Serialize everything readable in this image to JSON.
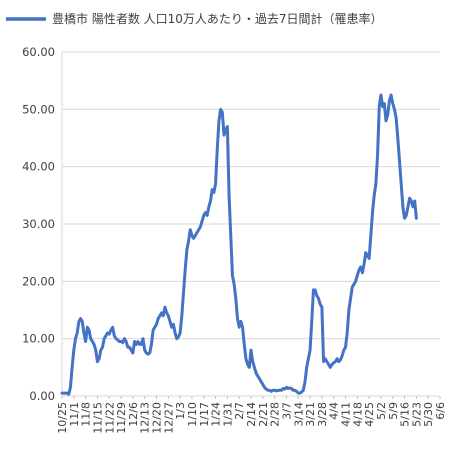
{
  "chart_data": {
    "type": "line",
    "legend": {
      "position": "top-left",
      "label": "豊橋市 陽性者数 人口10万人あたり・過去7日間計（罹患率）"
    },
    "ylim": [
      0,
      60
    ],
    "y_ticks": [
      "0.00",
      "10.00",
      "20.00",
      "30.00",
      "40.00",
      "50.00",
      "60.00"
    ],
    "x_ticks": [
      "10/25",
      "11/1",
      "11/8",
      "11/15",
      "11/22",
      "11/29",
      "12/6",
      "12/13",
      "12/20",
      "12/27",
      "1/3",
      "1/10",
      "1/17",
      "1/24",
      "1/31",
      "2/7",
      "2/14",
      "2/21",
      "2/28",
      "3/7",
      "3/14",
      "3/21",
      "3/28",
      "4/4",
      "4/11",
      "4/18",
      "4/25",
      "5/2",
      "5/9",
      "5/16",
      "5/23",
      "5/30",
      "6/6"
    ],
    "grid": true,
    "series": [
      {
        "name": "豊橋市 陽性者数 人口10万人あたり・過去7日間計（罹患率）",
        "color": "#4472C4",
        "x_start": "10/25",
        "step_days": 1,
        "values": [
          0.5,
          0.5,
          0.5,
          0.5,
          0.3,
          1.5,
          5.0,
          8.0,
          10.0,
          11.0,
          13.0,
          13.5,
          13.0,
          11.0,
          9.5,
          12.0,
          11.5,
          10.0,
          9.5,
          9.0,
          8.0,
          6.0,
          6.5,
          8.0,
          8.5,
          10.0,
          10.5,
          11.0,
          10.8,
          11.5,
          12.0,
          10.5,
          10.0,
          9.8,
          9.5,
          9.5,
          9.3,
          10.0,
          9.5,
          8.5,
          8.5,
          8.0,
          7.5,
          9.5,
          9.0,
          9.5,
          9.0,
          9.0,
          10.0,
          8.0,
          7.5,
          7.3,
          7.5,
          9.0,
          11.5,
          12.0,
          12.5,
          13.5,
          14.0,
          14.5,
          14.0,
          15.5,
          14.5,
          14.0,
          13.0,
          12.0,
          12.5,
          11.0,
          10.0,
          10.3,
          11.0,
          14.0,
          18.0,
          22.0,
          25.5,
          27.0,
          29.0,
          28.0,
          27.5,
          28.0,
          28.5,
          29.0,
          29.5,
          30.5,
          31.5,
          32.0,
          31.5,
          33.0,
          34.0,
          36.0,
          35.5,
          37.0,
          43.0,
          48.0,
          50.0,
          49.5,
          45.5,
          46.5,
          47.0,
          35.0,
          28.0,
          21.0,
          19.5,
          17.0,
          13.5,
          12.0,
          13.0,
          12.0,
          9.0,
          6.5,
          5.5,
          5.0,
          8.0,
          6.0,
          5.0,
          4.0,
          3.5,
          3.0,
          2.5,
          2.0,
          1.5,
          1.2,
          1.0,
          1.0,
          0.8,
          1.0,
          1.0,
          0.9,
          1.0,
          1.0,
          1.0,
          1.3,
          1.2,
          1.5,
          1.3,
          1.4,
          1.3,
          1.0,
          1.0,
          0.8,
          0.5,
          0.5,
          0.7,
          1.0,
          2.5,
          5.0,
          6.5,
          8.0,
          13.0,
          18.5,
          18.5,
          17.5,
          17.0,
          16.0,
          15.5,
          6.0,
          6.5,
          6.0,
          5.5,
          5.0,
          5.5,
          5.8,
          6.0,
          6.5,
          6.0,
          6.3,
          7.0,
          8.0,
          8.5,
          11.0,
          15.0,
          17.0,
          19.0,
          19.5,
          20.0,
          21.0,
          22.0,
          22.5,
          21.5,
          23.0,
          25.0,
          24.5,
          24.0,
          28.0,
          32.0,
          35.0,
          37.0,
          42.0,
          50.5,
          52.5,
          50.5,
          51.0,
          48.0,
          49.0,
          51.5,
          52.5,
          51.0,
          50.0,
          48.5,
          45.0,
          41.0,
          37.0,
          33.0,
          31.0,
          31.5,
          33.0,
          34.5,
          34.0,
          33.0,
          34.0,
          31.0
        ]
      }
    ]
  }
}
